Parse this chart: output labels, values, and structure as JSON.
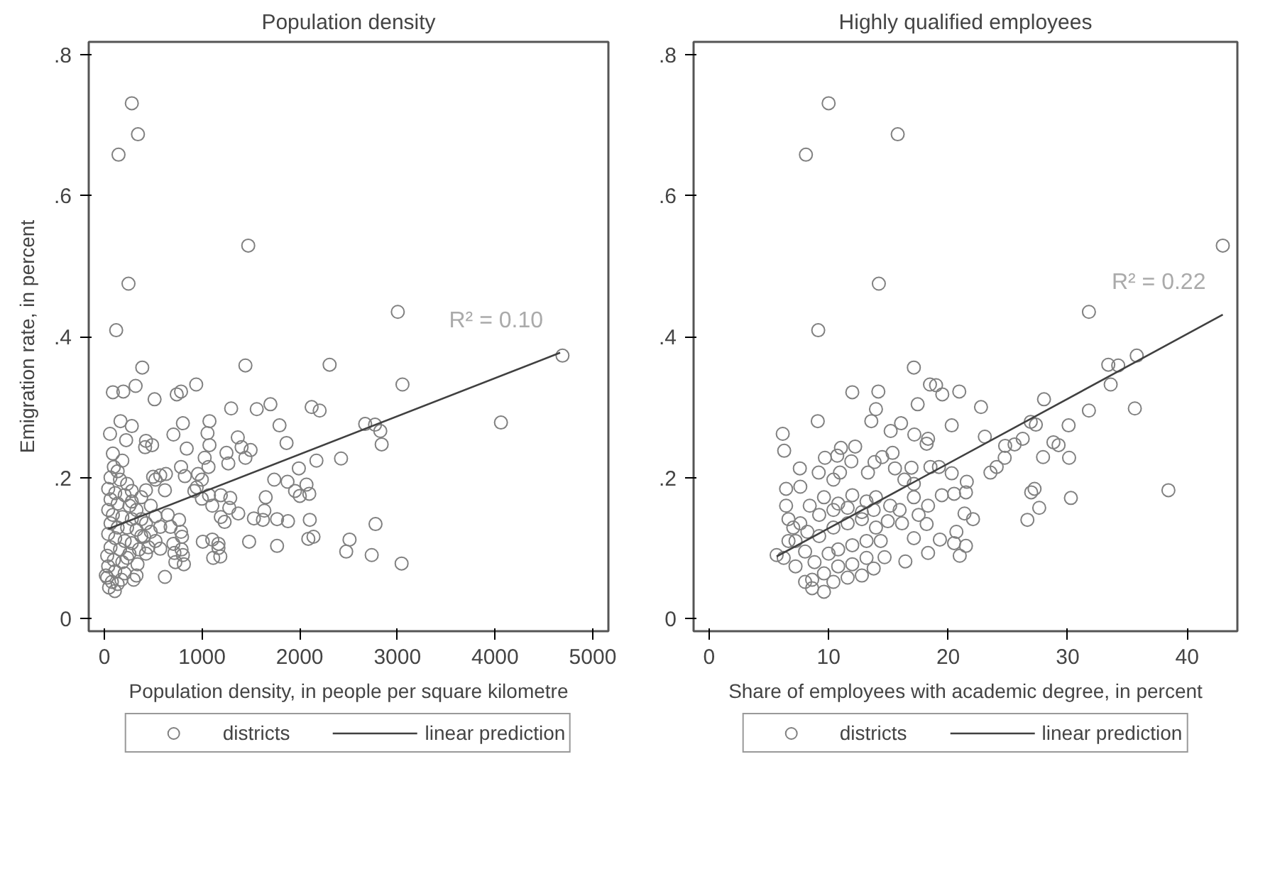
{
  "chart_data": [
    {
      "type": "scatter",
      "title": "Population density",
      "xlabel": "Population density, in people per square kilometre",
      "ylabel": "Emigration rate, in percent",
      "xlim": [
        -160,
        5160
      ],
      "ylim": [
        -0.018,
        0.818
      ],
      "xticks": [
        0,
        1000,
        2000,
        3000,
        4000,
        5000
      ],
      "yticks": [
        {
          "value": 0,
          "label": "0"
        },
        {
          "value": 0.2,
          "label": ".2"
        },
        {
          "value": 0.4,
          "label": ".4"
        },
        {
          "value": 0.6,
          "label": ".6"
        },
        {
          "value": 0.8,
          "label": ".8"
        }
      ],
      "grid": false,
      "legend": "bottom",
      "marker": "circle",
      "annotations": [
        "R² = 0.10"
      ],
      "series": [
        {
          "name": "districts",
          "color": "#808080",
          "x": [
            281,
            344,
            145,
            1473,
            247,
            3004,
            121,
            4690,
            388,
            1444,
            2306,
            940,
            320,
            87,
            194,
            514,
            741,
            785,
            3052,
            1298,
            1560,
            1700,
            2122,
            2204,
            165,
            281,
            58,
            707,
            804,
            1076,
            1056,
            1793,
            2670,
            2771,
            2825,
            2839,
            4060,
            223,
            426,
            417,
            489,
            843,
            1076,
            1366,
            1405,
            1497,
            1865,
            1250,
            1444,
            1269,
            1027,
            1066,
            2171,
            2423,
            1991,
            785,
            824,
            499,
            572,
            630,
            523,
            620,
            959,
            998,
            945,
            921,
            1071,
            998,
            1192,
            1289,
            1105,
            1279,
            1371,
            1652,
            1638,
            1739,
            1875,
            1952,
            2001,
            2069,
            2098,
            1531,
            1623,
            1768,
            1880,
            2103,
            2776,
            1192,
            1231,
            1008,
            1105,
            1168,
            1168,
            1114,
            1187,
            1482,
            1768,
            2088,
            2141,
            2510,
            2476,
            2737,
            3043,
            707,
            795,
            790,
            804,
            814,
            727,
            717,
            572,
            451,
            426,
            407,
            620,
            339,
            329,
            300,
            765,
            785,
            678,
            572,
            649,
            523,
            475,
            378,
            281,
            426,
            87,
            97,
            136,
            184,
            63,
            160,
            233,
            39,
            111,
            208,
            281,
            63,
            136,
            257,
            329,
            39,
            87,
            184,
            281,
            378,
            63,
            136,
            233,
            329,
            39,
            111,
            208,
            281,
            63,
            160,
            257,
            29,
            97,
            184,
            39,
            111,
            208,
            29,
            77,
            136,
            48,
            107,
            174,
            15,
            233,
            354,
            378,
            426,
            475,
            523
          ],
          "values": [
            0.731,
            0.687,
            0.658,
            0.529,
            0.475,
            0.435,
            0.409,
            0.373,
            0.356,
            0.359,
            0.36,
            0.332,
            0.33,
            0.321,
            0.322,
            0.311,
            0.318,
            0.322,
            0.332,
            0.298,
            0.297,
            0.304,
            0.3,
            0.295,
            0.28,
            0.273,
            0.262,
            0.261,
            0.277,
            0.28,
            0.263,
            0.274,
            0.276,
            0.275,
            0.266,
            0.247,
            0.278,
            0.253,
            0.252,
            0.243,
            0.246,
            0.241,
            0.246,
            0.257,
            0.243,
            0.239,
            0.249,
            0.235,
            0.228,
            0.22,
            0.228,
            0.215,
            0.224,
            0.227,
            0.213,
            0.215,
            0.202,
            0.201,
            0.203,
            0.205,
            0.197,
            0.182,
            0.205,
            0.197,
            0.186,
            0.181,
            0.175,
            0.17,
            0.175,
            0.171,
            0.16,
            0.157,
            0.149,
            0.172,
            0.153,
            0.197,
            0.194,
            0.181,
            0.174,
            0.19,
            0.177,
            0.142,
            0.14,
            0.141,
            0.138,
            0.14,
            0.134,
            0.144,
            0.137,
            0.109,
            0.112,
            0.106,
            0.1,
            0.086,
            0.088,
            0.109,
            0.103,
            0.113,
            0.116,
            0.112,
            0.095,
            0.09,
            0.078,
            0.106,
            0.116,
            0.098,
            0.09,
            0.077,
            0.08,
            0.093,
            0.099,
            0.101,
            0.092,
            0.116,
            0.059,
            0.077,
            0.061,
            0.055,
            0.14,
            0.123,
            0.13,
            0.13,
            0.147,
            0.145,
            0.16,
            0.172,
            0.166,
            0.182,
            0.234,
            0.215,
            0.209,
            0.224,
            0.2,
            0.197,
            0.191,
            0.184,
            0.178,
            0.175,
            0.181,
            0.169,
            0.163,
            0.16,
            0.154,
            0.154,
            0.147,
            0.144,
            0.141,
            0.141,
            0.135,
            0.129,
            0.129,
            0.126,
            0.12,
            0.114,
            0.11,
            0.107,
            0.101,
            0.098,
            0.092,
            0.089,
            0.083,
            0.08,
            0.074,
            0.067,
            0.064,
            0.058,
            0.052,
            0.049,
            0.044,
            0.039,
            0.055,
            0.061,
            0.086,
            0.098,
            0.117,
            0.135,
            0.123,
            0.11
          ]
        },
        {
          "name": "linear prediction",
          "type": "line",
          "marker": "none",
          "color": "#404040",
          "x": [
            39,
            4666
          ],
          "values": [
            0.127,
            0.377
          ]
        }
      ]
    },
    {
      "type": "scatter",
      "title": "Highly qualified employees",
      "xlabel": "Share of employees with academic degree, in percent",
      "xlim": [
        -1.3,
        44.2
      ],
      "ylim": [
        -0.018,
        0.818
      ],
      "xticks": [
        0,
        10,
        20,
        30,
        40
      ],
      "yticks": [
        {
          "value": 0,
          "label": "0"
        },
        {
          "value": 0.2,
          "label": ".2"
        },
        {
          "value": 0.4,
          "label": ".4"
        },
        {
          "value": 0.6,
          "label": ".6"
        },
        {
          "value": 0.8,
          "label": ".8"
        }
      ],
      "grid": false,
      "legend": "bottom",
      "marker": "circle",
      "annotations": [
        "R² = 0.22"
      ],
      "series": [
        {
          "name": "districts",
          "color": "#808080",
          "x": [
            10.0,
            15.78,
            8.1,
            42.98,
            14.2,
            31.78,
            9.13,
            17.13,
            11.98,
            14.16,
            18.48,
            18.99,
            19.51,
            20.93,
            13.96,
            13.57,
            17.45,
            22.75,
            28.02,
            33.4,
            34.23,
            35.78,
            33.6,
            31.78,
            35.62,
            9.09,
            6.16,
            6.28,
            16.06,
            15.19,
            17.17,
            18.32,
            18.2,
            20.3,
            23.07,
            26.91,
            27.34,
            30.08,
            26.24,
            25.56,
            24.77,
            24.73,
            24.06,
            23.54,
            27.94,
            28.81,
            29.24,
            30.12,
            38.43,
            30.27,
            27.23,
            26.95,
            27.62,
            26.63,
            11.03,
            12.22,
            11.9,
            9.69,
            10.72,
            13.84,
            14.48,
            15.35,
            15.55,
            16.93,
            7.59,
            9.17,
            10.95,
            10.4,
            13.29,
            16.34,
            17.13,
            18.52,
            19.23,
            20.3,
            21.56,
            21.49,
            20.5,
            19.47,
            21.37,
            22.08,
            20.69,
            21.49,
            20.97,
            20.5,
            19.31,
            18.32,
            17.13,
            16.42,
            18.2,
            18.32,
            17.13,
            15.94,
            15.15,
            13.96,
            13.17,
            11.98,
            10.8,
            9.61,
            8.42,
            7.63,
            6.44,
            6.44,
            6.64,
            5.65,
            6.24,
            7.23,
            8.03,
            8.62,
            9.61,
            10.4,
            11.59,
            12.78,
            13.77,
            14.68,
            13.17,
            11.98,
            10.8,
            9.61,
            8.82,
            8.03,
            7.23,
            7.04,
            8.22,
            9.21,
            10.4,
            11.59,
            12.78,
            13.96,
            14.36,
            13.17,
            11.98,
            10.8,
            10.0,
            9.21,
            10.4,
            11.59,
            12.78,
            13.77,
            14.95,
            16.14,
            17.53,
            7.63,
            8.62,
            6.64
          ],
          "values": [
            0.731,
            0.687,
            0.658,
            0.529,
            0.475,
            0.435,
            0.409,
            0.356,
            0.321,
            0.322,
            0.332,
            0.331,
            0.318,
            0.322,
            0.297,
            0.28,
            0.304,
            0.3,
            0.311,
            0.36,
            0.359,
            0.373,
            0.332,
            0.295,
            0.298,
            0.28,
            0.262,
            0.238,
            0.277,
            0.266,
            0.261,
            0.255,
            0.248,
            0.274,
            0.258,
            0.279,
            0.275,
            0.274,
            0.255,
            0.247,
            0.245,
            0.228,
            0.215,
            0.207,
            0.229,
            0.25,
            0.246,
            0.228,
            0.182,
            0.171,
            0.184,
            0.179,
            0.157,
            0.14,
            0.242,
            0.244,
            0.223,
            0.228,
            0.231,
            0.222,
            0.229,
            0.235,
            0.213,
            0.214,
            0.213,
            0.207,
            0.207,
            0.197,
            0.207,
            0.197,
            0.191,
            0.215,
            0.215,
            0.206,
            0.194,
            0.179,
            0.177,
            0.175,
            0.149,
            0.141,
            0.123,
            0.103,
            0.089,
            0.107,
            0.112,
            0.093,
            0.114,
            0.081,
            0.134,
            0.16,
            0.172,
            0.154,
            0.16,
            0.172,
            0.166,
            0.175,
            0.163,
            0.172,
            0.16,
            0.187,
            0.184,
            0.16,
            0.141,
            0.09,
            0.086,
            0.074,
            0.052,
            0.043,
            0.038,
            0.052,
            0.058,
            0.061,
            0.071,
            0.087,
            0.086,
            0.077,
            0.074,
            0.064,
            0.08,
            0.095,
            0.11,
            0.129,
            0.123,
            0.117,
            0.129,
            0.135,
            0.141,
            0.129,
            0.11,
            0.11,
            0.104,
            0.098,
            0.092,
            0.147,
            0.154,
            0.157,
            0.151,
            0.154,
            0.138,
            0.135,
            0.147,
            0.135,
            0.055,
            0.11
          ]
        },
        {
          "name": "linear prediction",
          "type": "line",
          "marker": "none",
          "color": "#404040",
          "x": [
            5.65,
            42.98
          ],
          "values": [
            0.088,
            0.431
          ]
        }
      ]
    }
  ]
}
